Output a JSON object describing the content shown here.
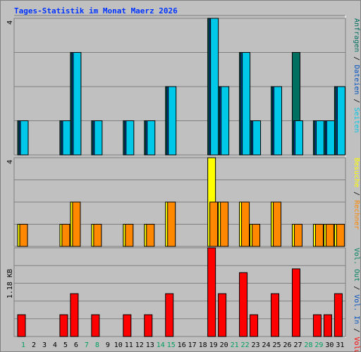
{
  "title": "Tages-Statistik im Monat Maerz 2026",
  "colors": {
    "background": "#c0c0c0",
    "title": "#0033ff",
    "grid": "#808080",
    "anfragen": "#007060",
    "dateien": "#0050c0",
    "seiten": "#00c8e8",
    "besuche": "#ffff00",
    "rechner": "#ff8800",
    "vol_out": "#008060",
    "vol_in": "#0050c0",
    "volumen": "#ff0000",
    "day_normal": "#000000",
    "day_weekend": "#00a060"
  },
  "chart_data": [
    {
      "type": "bar",
      "name": "Anfragen / Dateien / Seiten",
      "ymax_label": "4",
      "ylim": [
        0,
        4
      ],
      "categories": [
        "1",
        "2",
        "3",
        "4",
        "5",
        "6",
        "7",
        "8",
        "9",
        "10",
        "11",
        "12",
        "13",
        "14",
        "15",
        "16",
        "17",
        "18",
        "19",
        "20",
        "21",
        "22",
        "23",
        "24",
        "25",
        "26",
        "27",
        "28",
        "29",
        "30",
        "31"
      ],
      "series": [
        {
          "name": "Anfragen",
          "values": [
            1,
            0,
            0,
            0,
            1,
            3,
            0,
            1,
            0,
            0,
            1,
            0,
            1,
            0,
            2,
            0,
            0,
            0,
            4,
            2,
            0,
            3,
            1,
            0,
            2,
            0,
            3,
            0,
            1,
            1,
            2
          ]
        },
        {
          "name": "Dateien",
          "values": [
            1,
            0,
            0,
            0,
            1,
            3,
            0,
            1,
            0,
            0,
            1,
            0,
            1,
            0,
            2,
            0,
            0,
            0,
            4,
            2,
            0,
            3,
            1,
            0,
            2,
            0,
            1,
            0,
            1,
            1,
            2
          ]
        },
        {
          "name": "Seiten",
          "values": [
            1,
            0,
            0,
            0,
            1,
            3,
            0,
            1,
            0,
            0,
            1,
            0,
            1,
            0,
            2,
            0,
            0,
            0,
            4,
            2,
            0,
            3,
            1,
            0,
            2,
            0,
            1,
            0,
            1,
            1,
            2
          ]
        }
      ]
    },
    {
      "type": "bar",
      "name": "Besuche / Rechner",
      "ymax_label": "4",
      "ylim": [
        0,
        4
      ],
      "categories": [
        "1",
        "2",
        "3",
        "4",
        "5",
        "6",
        "7",
        "8",
        "9",
        "10",
        "11",
        "12",
        "13",
        "14",
        "15",
        "16",
        "17",
        "18",
        "19",
        "20",
        "21",
        "22",
        "23",
        "24",
        "25",
        "26",
        "27",
        "28",
        "29",
        "30",
        "31"
      ],
      "series": [
        {
          "name": "Besuche",
          "values": [
            1,
            0,
            0,
            0,
            1,
            2,
            0,
            1,
            0,
            0,
            1,
            0,
            1,
            0,
            2,
            0,
            0,
            0,
            4,
            2,
            0,
            2,
            1,
            0,
            2,
            0,
            1,
            0,
            1,
            1,
            1
          ]
        },
        {
          "name": "Rechner",
          "values": [
            1,
            0,
            0,
            0,
            1,
            2,
            0,
            1,
            0,
            0,
            1,
            0,
            1,
            0,
            2,
            0,
            0,
            0,
            2,
            2,
            0,
            2,
            1,
            0,
            2,
            0,
            1,
            0,
            1,
            1,
            1
          ]
        }
      ]
    },
    {
      "type": "bar",
      "name": "Vol. Out / Vol. In / Volumen",
      "ymax_label": "1.18 KB",
      "ylim": [
        0,
        1.18
      ],
      "categories": [
        "1",
        "2",
        "3",
        "4",
        "5",
        "6",
        "7",
        "8",
        "9",
        "10",
        "11",
        "12",
        "13",
        "14",
        "15",
        "16",
        "17",
        "18",
        "19",
        "20",
        "21",
        "22",
        "23",
        "24",
        "25",
        "26",
        "27",
        "28",
        "29",
        "30",
        "31"
      ],
      "series": [
        {
          "name": "Vol. Out",
          "values": [
            0,
            0,
            0,
            0,
            0,
            0,
            0,
            0,
            0,
            0,
            0,
            0,
            0,
            0,
            0,
            0,
            0,
            0,
            0,
            0,
            0,
            0,
            0,
            0,
            0,
            0,
            0,
            0,
            0,
            0,
            0
          ]
        },
        {
          "name": "Vol. In",
          "values": [
            0,
            0,
            0,
            0,
            0,
            0,
            0,
            0,
            0,
            0,
            0,
            0,
            0,
            0,
            0,
            0,
            0,
            0,
            0,
            0,
            0,
            0,
            0,
            0,
            0,
            0,
            0,
            0,
            0,
            0,
            0
          ]
        },
        {
          "name": "Volumen",
          "values": [
            0.29,
            0,
            0,
            0,
            0.29,
            0.57,
            0,
            0.29,
            0,
            0,
            0.29,
            0,
            0.29,
            0,
            0.57,
            0,
            0,
            0,
            1.18,
            0.57,
            0,
            0.85,
            0.29,
            0,
            0.57,
            0,
            0.9,
            0,
            0.29,
            0.29,
            0.57
          ]
        }
      ]
    }
  ],
  "weekend_days": [
    "1",
    "7",
    "8",
    "14",
    "15",
    "21",
    "22",
    "28",
    "29"
  ],
  "legends": [
    {
      "items": [
        {
          "text": "Anfragen",
          "color_key": "anfragen"
        },
        {
          "text": "Dateien",
          "color_key": "dateien"
        },
        {
          "text": "Seiten",
          "color_key": "seiten"
        }
      ]
    },
    {
      "items": [
        {
          "text": "Besuche",
          "color_key": "besuche"
        },
        {
          "text": "Rechner",
          "color_key": "rechner"
        }
      ]
    },
    {
      "items": [
        {
          "text": "Vol. Out",
          "color_key": "vol_out"
        },
        {
          "text": "Vol. In",
          "color_key": "vol_in"
        },
        {
          "text": "Volumen",
          "color_key": "volumen"
        }
      ]
    }
  ]
}
